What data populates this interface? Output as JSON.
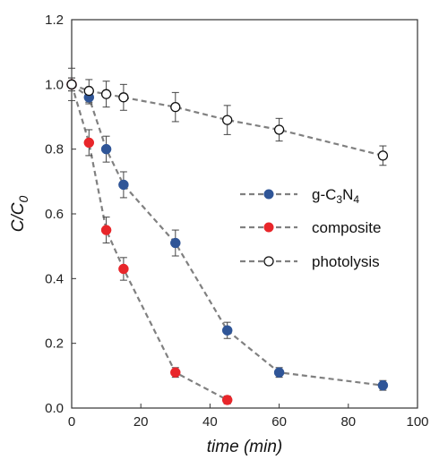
{
  "chart_data": {
    "type": "scatter",
    "title": "",
    "xlabel": "time (min)",
    "ylabel_main": "C/C",
    "ylabel_sub": "0",
    "xlim": [
      0,
      100
    ],
    "ylim": [
      0,
      1.2
    ],
    "xticks": [
      "0",
      "20",
      "40",
      "60",
      "80",
      "100"
    ],
    "yticks": [
      "0.0",
      "0.2",
      "0.4",
      "0.6",
      "0.8",
      "1.0",
      "1.2"
    ],
    "grid": false,
    "legend_position": "right",
    "line_style": "dashed",
    "line_color": "#808080",
    "series": [
      {
        "key": "gcn",
        "name_parts": [
          {
            "text": "g-C",
            "sub": false
          },
          {
            "text": "3",
            "sub": true
          },
          {
            "text": "N",
            "sub": false
          },
          {
            "text": "4",
            "sub": true
          }
        ],
        "marker": "filled",
        "color": "#2f5597",
        "x": [
          0,
          5,
          10,
          15,
          30,
          45,
          60,
          90
        ],
        "y": [
          1.0,
          0.96,
          0.8,
          0.69,
          0.51,
          0.24,
          0.11,
          0.07
        ],
        "err": [
          0.02,
          0.02,
          0.04,
          0.04,
          0.04,
          0.025,
          0.015,
          0.015
        ]
      },
      {
        "key": "composite",
        "name_parts": [
          {
            "text": "composite",
            "sub": false
          }
        ],
        "marker": "filled",
        "color": "#e8262a",
        "x": [
          0,
          5,
          10,
          15,
          30,
          45
        ],
        "y": [
          1.0,
          0.82,
          0.55,
          0.43,
          0.11,
          0.025
        ],
        "err": [
          0.02,
          0.04,
          0.04,
          0.035,
          0.015,
          0.012
        ]
      },
      {
        "key": "photolysis",
        "name_parts": [
          {
            "text": "photolysis",
            "sub": false
          }
        ],
        "marker": "open",
        "color": "#111111",
        "x": [
          0,
          5,
          10,
          15,
          30,
          45,
          60,
          90
        ],
        "y": [
          1.0,
          0.98,
          0.97,
          0.96,
          0.93,
          0.89,
          0.86,
          0.78
        ],
        "err": [
          0.05,
          0.035,
          0.04,
          0.04,
          0.045,
          0.045,
          0.035,
          0.03
        ]
      }
    ]
  }
}
